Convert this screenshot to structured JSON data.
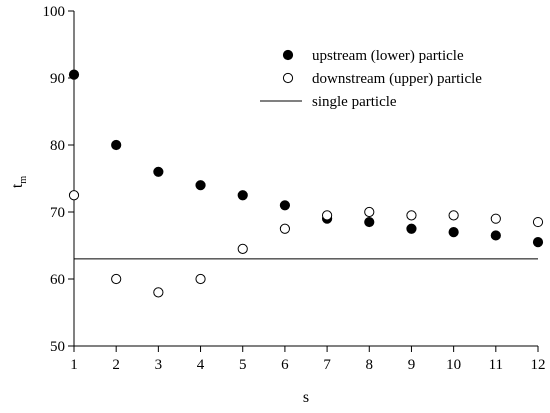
{
  "chart_data": {
    "type": "scatter",
    "title": "",
    "xlabel": "s",
    "ylabel": "t",
    "ylabel_subscript": "m",
    "xlim": [
      1,
      12
    ],
    "ylim": [
      50,
      100
    ],
    "x_ticks": [
      1,
      2,
      3,
      4,
      5,
      6,
      7,
      8,
      9,
      10,
      11,
      12
    ],
    "y_ticks": [
      50,
      60,
      70,
      80,
      90,
      100
    ],
    "grid": false,
    "legend_position": "top-right",
    "series": [
      {
        "name": "upstream (lower) particle",
        "marker": "filled-circle",
        "color": "#000000",
        "x": [
          1,
          2,
          3,
          4,
          5,
          6,
          7,
          8,
          9,
          10,
          11,
          12
        ],
        "y": [
          90.5,
          80,
          76,
          74,
          72.5,
          71,
          69,
          68.5,
          67.5,
          67,
          66.5,
          65.5
        ]
      },
      {
        "name": "downstream (upper) particle",
        "marker": "open-circle",
        "color": "#000000",
        "x": [
          1,
          2,
          3,
          4,
          5,
          6,
          7,
          8,
          9,
          10,
          11,
          12
        ],
        "y": [
          72.5,
          60,
          58,
          60,
          64.5,
          67.5,
          69.5,
          70,
          69.5,
          69.5,
          69,
          68.5
        ]
      },
      {
        "name": "single particle",
        "marker": "line",
        "color": "#000000",
        "x": [
          1,
          12
        ],
        "y": [
          63,
          63
        ]
      }
    ]
  }
}
